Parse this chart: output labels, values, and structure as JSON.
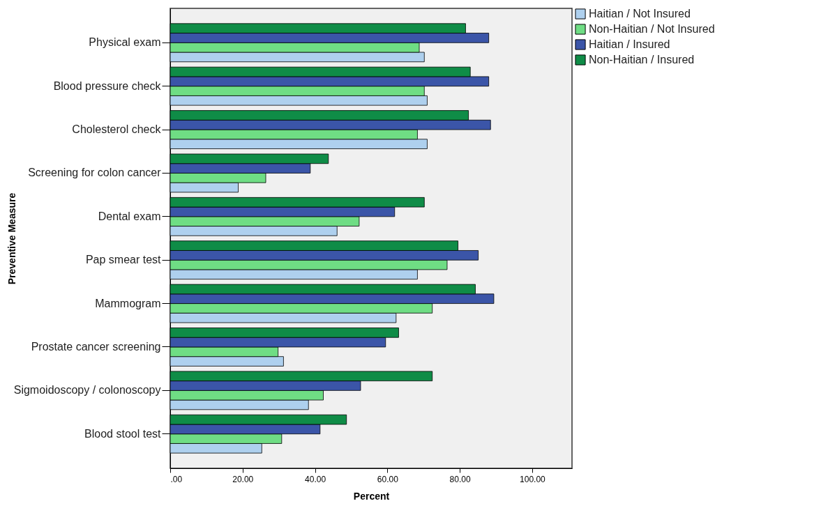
{
  "chart_data": {
    "type": "bar",
    "orientation": "horizontal",
    "xlabel": "Percent",
    "ylabel": "Preventive Measure",
    "categories": [
      "Physical exam",
      "Blood pressure check",
      "Cholesterol check",
      "Screening for colon cancer",
      "Dental exam",
      "Pap smear test",
      "Mammogram",
      "Prostate cancer screening",
      "Sigmoidoscopy / colonoscopy",
      "Blood stool test"
    ],
    "series": [
      {
        "name": "Haitian / Not Insured",
        "color": "#aed0ee",
        "values": [
          70.2,
          71.0,
          71.0,
          18.8,
          46.1,
          68.3,
          62.4,
          31.3,
          38.2,
          25.3
        ]
      },
      {
        "name": "Non-Haitian / Not Insured",
        "color": "#6fdd84",
        "values": [
          68.8,
          70.2,
          68.3,
          26.4,
          52.2,
          76.5,
          72.4,
          29.8,
          42.3,
          30.8
        ]
      },
      {
        "name": "Haitian / Insured",
        "color": "#3b55a8",
        "values": [
          88.0,
          88.0,
          88.5,
          38.7,
          62.0,
          85.1,
          89.4,
          59.5,
          52.6,
          41.4
        ]
      },
      {
        "name": "Non-Haitian / Insured",
        "color": "#0f8c47",
        "values": [
          81.6,
          82.9,
          82.4,
          43.7,
          70.2,
          79.5,
          84.3,
          63.1,
          72.4,
          48.7
        ]
      }
    ],
    "xlim": [
      0,
      111
    ],
    "xticks": [
      {
        "value": 0,
        "label": ".00"
      },
      {
        "value": 20,
        "label": "20.00"
      },
      {
        "value": 40,
        "label": "40.00"
      },
      {
        "value": 60,
        "label": "60.00"
      },
      {
        "value": 80,
        "label": "80.00"
      },
      {
        "value": 100,
        "label": "100.00"
      }
    ],
    "grid": false,
    "legend": "top right"
  }
}
